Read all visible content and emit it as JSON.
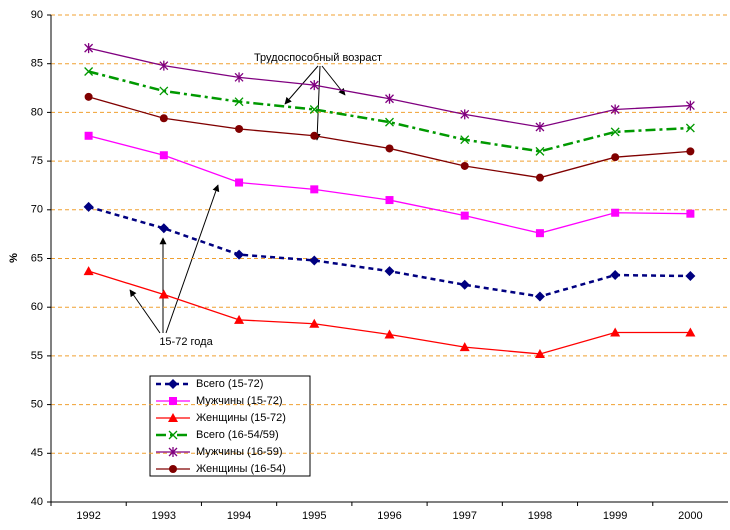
{
  "chart_data": {
    "type": "line",
    "ylabel": "%",
    "categories": [
      "1992",
      "1993",
      "1994",
      "1995",
      "1996",
      "1997",
      "1998",
      "1999",
      "2000"
    ],
    "ylim": [
      40,
      90
    ],
    "yticks": [
      40,
      45,
      50,
      55,
      60,
      65,
      70,
      75,
      80,
      85,
      90
    ],
    "grid": true,
    "annotations": [
      "Трудоспособный возраст",
      "15-72 года"
    ],
    "series": [
      {
        "name": "Всего (15-72)",
        "color": "#000080",
        "dash": "dashed",
        "marker": "diamond",
        "values": [
          70.3,
          68.1,
          65.4,
          64.8,
          63.7,
          62.3,
          61.1,
          63.3,
          63.2
        ]
      },
      {
        "name": "Мужчины (15-72)",
        "color": "#ff00ff",
        "dash": "solid",
        "marker": "square",
        "values": [
          77.6,
          75.6,
          72.8,
          72.1,
          71.0,
          69.4,
          67.6,
          69.7,
          69.6
        ]
      },
      {
        "name": "Женщины (15-72)",
        "color": "#ff0000",
        "dash": "solid",
        "marker": "triangle",
        "values": [
          63.7,
          61.3,
          58.7,
          58.3,
          57.2,
          55.9,
          55.2,
          57.4,
          57.4
        ]
      },
      {
        "name": "Всего (16-54/59)",
        "color": "#009900",
        "dash": "dashdot",
        "marker": "x",
        "values": [
          84.2,
          82.2,
          81.1,
          80.3,
          79.0,
          77.2,
          76.0,
          78.0,
          78.4
        ]
      },
      {
        "name": "Мужчины (16-59)",
        "color": "#800080",
        "dash": "solid",
        "marker": "star",
        "values": [
          86.6,
          84.8,
          83.6,
          82.8,
          81.4,
          79.8,
          78.5,
          80.3,
          80.7
        ]
      },
      {
        "name": "Женщины (16-54)",
        "color": "#800000",
        "dash": "solid",
        "marker": "circle",
        "values": [
          81.6,
          79.4,
          78.3,
          77.6,
          76.3,
          74.5,
          73.3,
          75.4,
          76.0
        ]
      }
    ]
  }
}
